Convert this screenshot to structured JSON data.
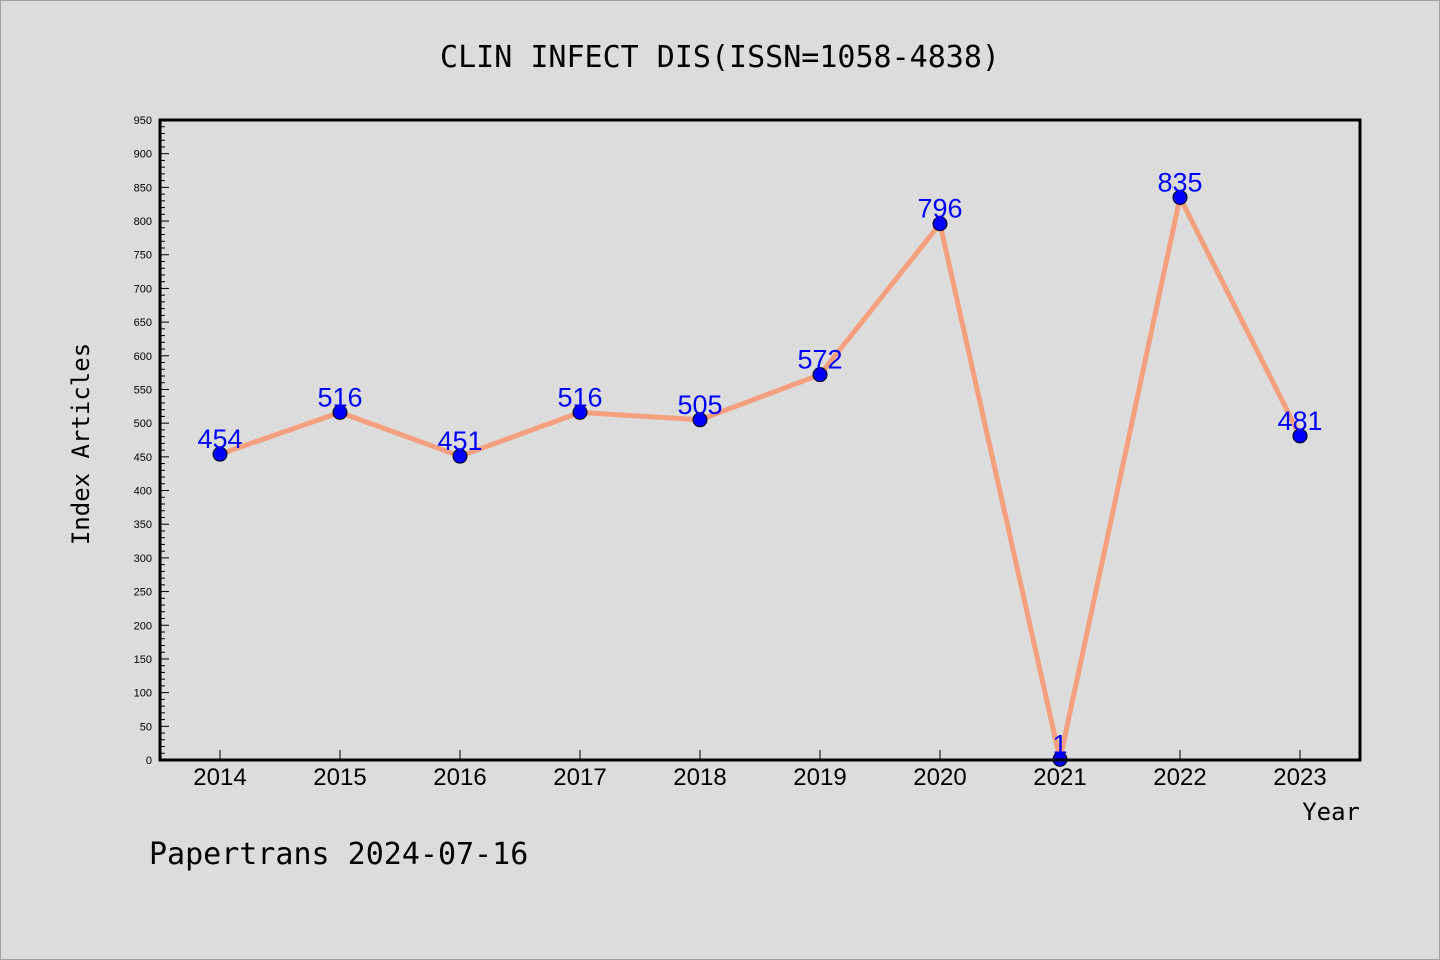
{
  "chart_data": {
    "type": "line",
    "title": "CLIN INFECT DIS(ISSN=1058-4838)",
    "xlabel": "Year",
    "ylabel": "Index Articles",
    "categories": [
      "2014",
      "2015",
      "2016",
      "2017",
      "2018",
      "2019",
      "2020",
      "2021",
      "2022",
      "2023"
    ],
    "series": [
      {
        "values": [
          454,
          516,
          451,
          516,
          505,
          572,
          796,
          1,
          835,
          481
        ],
        "labels": [
          "454",
          "516",
          "451",
          "516",
          "505",
          "572",
          "796",
          "1",
          "835",
          "481"
        ]
      }
    ],
    "ylim": [
      0,
      950
    ],
    "yticks": [
      0,
      50,
      100,
      150,
      200,
      250,
      300,
      350,
      400,
      450,
      500,
      550,
      600,
      650,
      700,
      750,
      800,
      850,
      900,
      950
    ],
    "ytick_labels": [
      "0",
      "50",
      "100",
      "150",
      "200",
      "250",
      "300",
      "350",
      "400",
      "450",
      "500",
      "550",
      "600",
      "650",
      "700",
      "750",
      "800",
      "850",
      "900",
      "950"
    ],
    "grid": false,
    "colors": {
      "line": "#f4a07e",
      "marker": "#0000ff",
      "labels": "#0000ff",
      "background": "#dcdcdc",
      "frame": "#000000"
    }
  },
  "footer": "Papertrans 2024-07-16"
}
